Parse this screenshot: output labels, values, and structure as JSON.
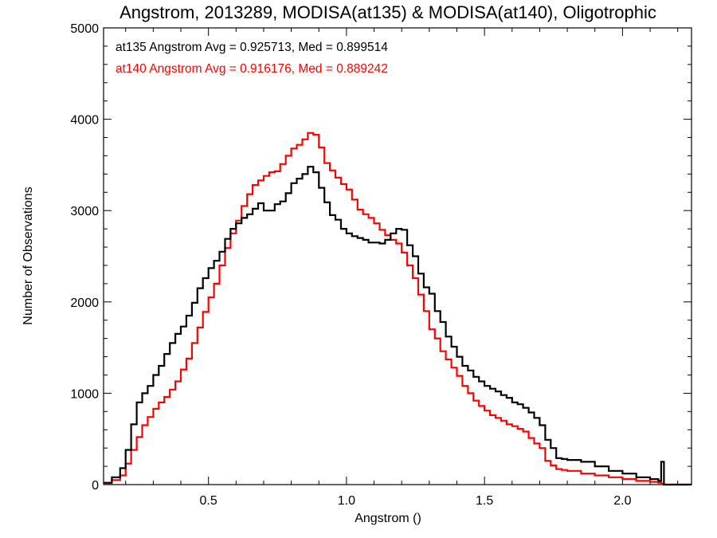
{
  "chart_data": {
    "type": "line",
    "title": "Angstrom, 2013289, MODISA(at135) & MODISA(at140), Oligotrophic",
    "xlabel": "Angstrom ()",
    "ylabel": "Number of Observations",
    "xlim": [
      0.12,
      2.25
    ],
    "ylim": [
      0,
      5000
    ],
    "x_ticks": [
      0.5,
      1.0,
      1.5,
      2.0
    ],
    "x_tick_labels": [
      "0.5",
      "1.0",
      "1.5",
      "2.0"
    ],
    "y_ticks": [
      0,
      1000,
      2000,
      3000,
      4000,
      5000
    ],
    "y_tick_labels": [
      "0",
      "1000",
      "2000",
      "3000",
      "4000",
      "5000"
    ],
    "grid": false,
    "legend_position": "top-left",
    "annotations": [
      {
        "text": "at135 Angstrom Avg = 0.925713, Med = 0.899514",
        "color": "#000000"
      },
      {
        "text": "at140 Angstrom Avg = 0.916176, Med = 0.889242",
        "color": "#ff0000"
      }
    ],
    "series": [
      {
        "color": "#000000",
        "x": [
          0.12,
          0.15,
          0.18,
          0.2,
          0.22,
          0.24,
          0.26,
          0.28,
          0.3,
          0.32,
          0.34,
          0.36,
          0.38,
          0.4,
          0.42,
          0.44,
          0.46,
          0.48,
          0.5,
          0.52,
          0.54,
          0.56,
          0.58,
          0.6,
          0.62,
          0.64,
          0.66,
          0.68,
          0.7,
          0.72,
          0.74,
          0.76,
          0.78,
          0.8,
          0.82,
          0.84,
          0.86,
          0.88,
          0.9,
          0.92,
          0.94,
          0.96,
          0.98,
          1.0,
          1.02,
          1.04,
          1.06,
          1.08,
          1.1,
          1.12,
          1.14,
          1.16,
          1.18,
          1.2,
          1.22,
          1.24,
          1.26,
          1.28,
          1.3,
          1.32,
          1.34,
          1.36,
          1.38,
          1.4,
          1.42,
          1.44,
          1.46,
          1.48,
          1.5,
          1.52,
          1.54,
          1.56,
          1.58,
          1.6,
          1.62,
          1.64,
          1.66,
          1.68,
          1.7,
          1.72,
          1.74,
          1.76,
          1.78,
          1.8,
          1.85,
          1.9,
          1.95,
          2.0,
          2.05,
          2.1,
          2.13,
          2.14,
          2.15,
          2.16,
          2.25
        ],
        "y": [
          20,
          80,
          180,
          380,
          660,
          900,
          1000,
          1080,
          1200,
          1300,
          1430,
          1550,
          1650,
          1730,
          1850,
          1990,
          2150,
          2260,
          2370,
          2450,
          2550,
          2690,
          2800,
          2860,
          2920,
          2960,
          3020,
          3080,
          3000,
          3000,
          3070,
          3100,
          3190,
          3300,
          3350,
          3400,
          3480,
          3420,
          3250,
          3090,
          2950,
          2900,
          2800,
          2750,
          2720,
          2700,
          2680,
          2650,
          2650,
          2640,
          2680,
          2750,
          2800,
          2790,
          2620,
          2500,
          2310,
          2160,
          2090,
          1900,
          1780,
          1620,
          1510,
          1400,
          1300,
          1250,
          1180,
          1130,
          1080,
          1050,
          1020,
          980,
          950,
          900,
          880,
          840,
          790,
          730,
          650,
          490,
          400,
          290,
          280,
          270,
          250,
          200,
          150,
          120,
          80,
          60,
          40,
          250,
          0,
          0,
          0
        ]
      },
      {
        "color": "#ff0000",
        "x": [
          0.12,
          0.15,
          0.18,
          0.2,
          0.22,
          0.24,
          0.26,
          0.28,
          0.3,
          0.32,
          0.34,
          0.36,
          0.38,
          0.4,
          0.42,
          0.44,
          0.46,
          0.48,
          0.5,
          0.52,
          0.54,
          0.56,
          0.58,
          0.6,
          0.62,
          0.64,
          0.66,
          0.68,
          0.7,
          0.72,
          0.74,
          0.76,
          0.78,
          0.8,
          0.82,
          0.84,
          0.86,
          0.88,
          0.9,
          0.92,
          0.94,
          0.96,
          0.98,
          1.0,
          1.02,
          1.04,
          1.06,
          1.08,
          1.1,
          1.12,
          1.14,
          1.16,
          1.18,
          1.2,
          1.22,
          1.24,
          1.26,
          1.28,
          1.3,
          1.32,
          1.34,
          1.36,
          1.38,
          1.4,
          1.42,
          1.44,
          1.46,
          1.48,
          1.5,
          1.52,
          1.54,
          1.56,
          1.58,
          1.6,
          1.62,
          1.64,
          1.66,
          1.68,
          1.7,
          1.72,
          1.74,
          1.76,
          1.78,
          1.8,
          1.85,
          1.9,
          1.95,
          2.0,
          2.05,
          2.1,
          2.13,
          2.14,
          2.15,
          2.16,
          2.25
        ],
        "y": [
          10,
          50,
          100,
          230,
          380,
          520,
          650,
          740,
          830,
          900,
          960,
          1040,
          1130,
          1260,
          1380,
          1550,
          1720,
          1890,
          2050,
          2200,
          2400,
          2590,
          2750,
          2890,
          3050,
          3180,
          3280,
          3330,
          3380,
          3420,
          3430,
          3510,
          3600,
          3680,
          3720,
          3780,
          3850,
          3830,
          3690,
          3520,
          3440,
          3360,
          3290,
          3230,
          3120,
          3010,
          2960,
          2920,
          2860,
          2790,
          2730,
          2680,
          2640,
          2540,
          2400,
          2260,
          2080,
          1900,
          1700,
          1600,
          1460,
          1370,
          1280,
          1190,
          1080,
          1000,
          920,
          860,
          810,
          760,
          730,
          700,
          660,
          640,
          610,
          580,
          510,
          450,
          400,
          260,
          210,
          170,
          160,
          150,
          120,
          100,
          80,
          60,
          40,
          30,
          20,
          10,
          0,
          0,
          0
        ]
      }
    ]
  }
}
